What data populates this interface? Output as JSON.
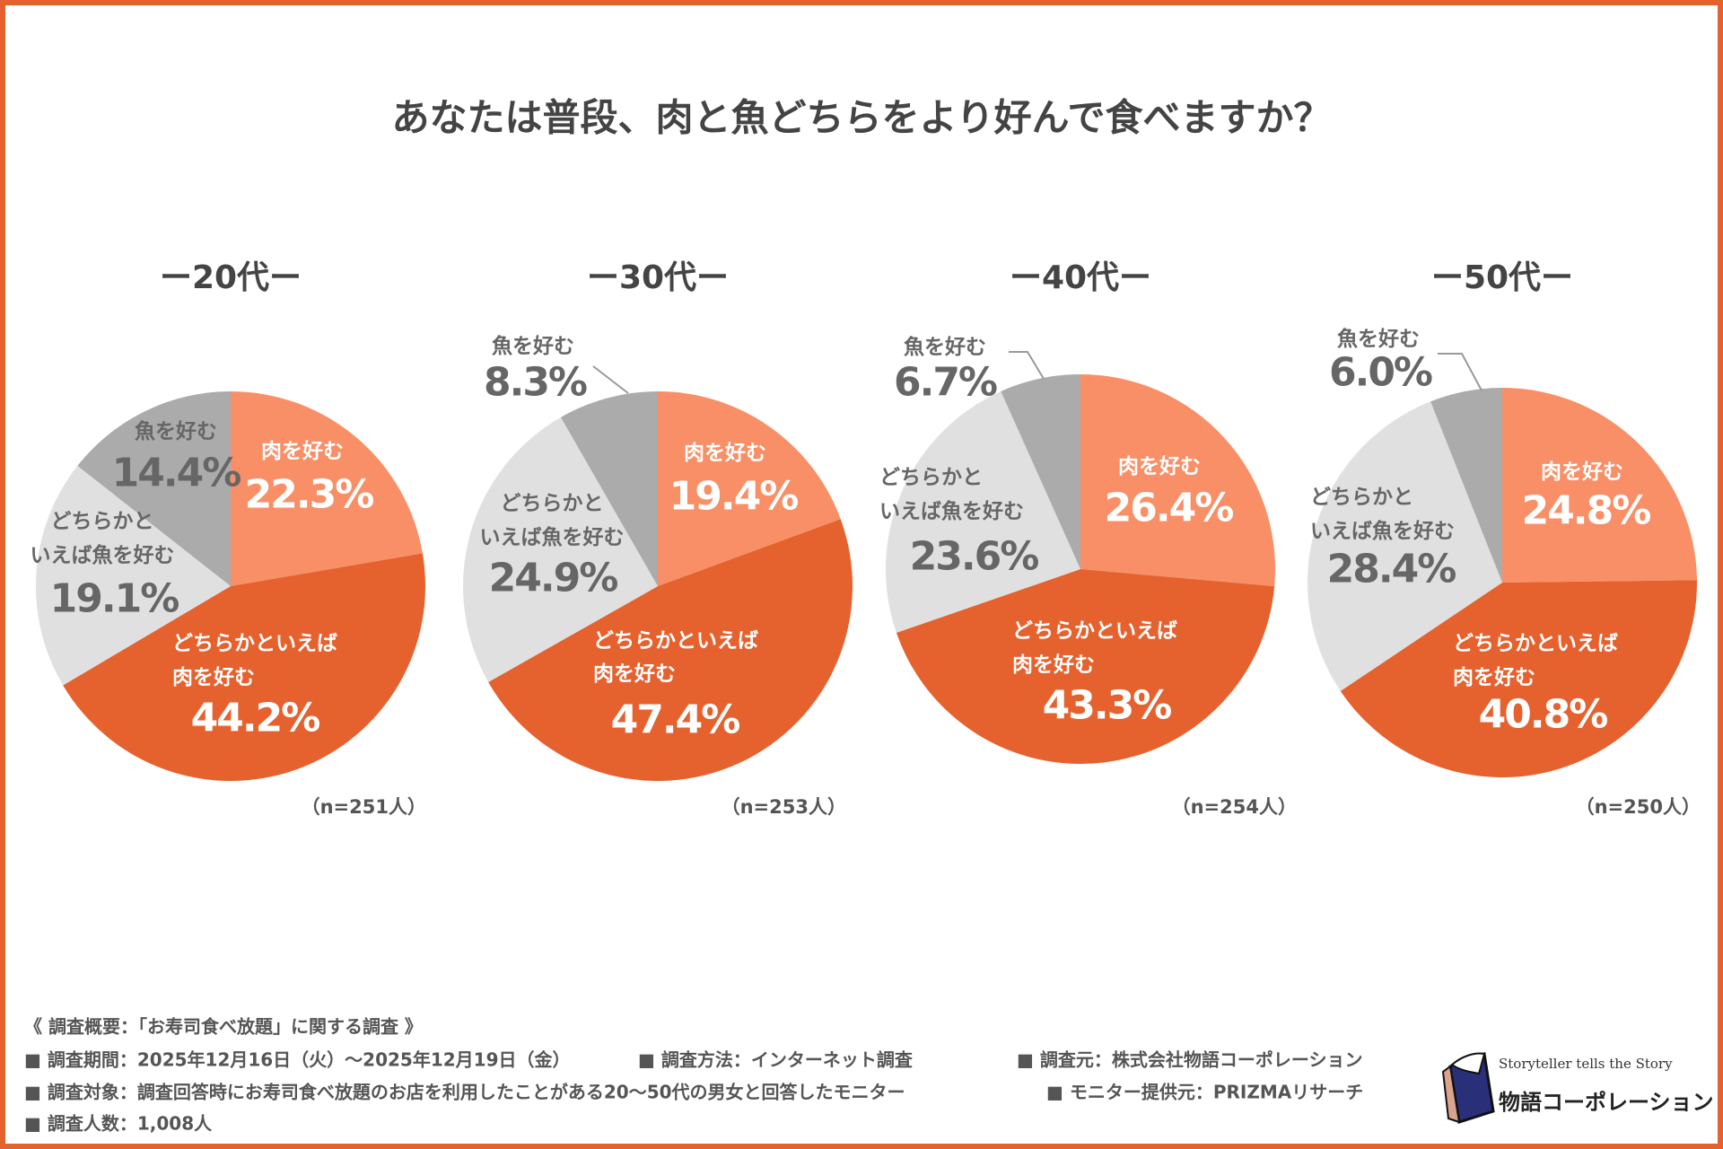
{
  "title": "あなたは普段、肉と魚どちらをより好んで食べますか？",
  "colors": {
    "meat": "#F98F66",
    "leaning_meat": "#E5622F",
    "leaning_fish": "#E0E0E0",
    "fish": "#ABABAB",
    "border": "#E5622F"
  },
  "chart_data": [
    {
      "type": "pie",
      "title": "ー20代ー",
      "n_label": "（n=251人）",
      "categories": [
        "肉を好む",
        "どちらかといえば肉を好む",
        "どちらかといえば魚を好む",
        "魚を好む"
      ],
      "values": [
        22.3,
        44.2,
        19.1,
        14.4
      ],
      "labels": [
        "22.3%",
        "44.2%",
        "19.1%",
        "14.4%"
      ]
    },
    {
      "type": "pie",
      "title": "ー30代ー",
      "n_label": "（n=253人）",
      "categories": [
        "肉を好む",
        "どちらかといえば肉を好む",
        "どちらかといえば魚を好む",
        "魚を好む"
      ],
      "values": [
        19.4,
        47.4,
        24.9,
        8.3
      ],
      "labels": [
        "19.4%",
        "47.4%",
        "24.9%",
        "8.3%"
      ]
    },
    {
      "type": "pie",
      "title": "ー40代ー",
      "n_label": "（n=254人）",
      "categories": [
        "肉を好む",
        "どちらかといえば肉を好む",
        "どちらかといえば魚を好む",
        "魚を好む"
      ],
      "values": [
        26.4,
        43.3,
        23.6,
        6.7
      ],
      "labels": [
        "26.4%",
        "43.3%",
        "23.6%",
        "6.7%"
      ]
    },
    {
      "type": "pie",
      "title": "ー50代ー",
      "n_label": "（n=250人）",
      "categories": [
        "肉を好む",
        "どちらかといえば肉を好む",
        "どちらかといえば魚を好む",
        "魚を好む"
      ],
      "values": [
        24.8,
        40.8,
        28.4,
        6.0
      ],
      "labels": [
        "24.8%",
        "40.8%",
        "28.4%",
        "6.0%"
      ]
    }
  ],
  "slice_labels": {
    "meat": "肉を好む",
    "leaning_meat_1": "どちらかといえば",
    "leaning_meat_2": "肉を好む",
    "leaning_fish_1": "どちらかと",
    "leaning_fish_2": "いえば魚を好む",
    "fish": "魚を好む"
  },
  "footer": {
    "heading": "《 調査概要：「お寿司食べ放題」に関する調査 》",
    "period": "■ 調査期間：2025年12月16日（火）～2025年12月19日（金）",
    "method": "■ 調査方法：インターネット調査",
    "source": "■ 調査元：株式会社物語コーポレーション",
    "target": "■ 調査対象：調査回答時にお寿司食べ放題のお店を利用したことがある20～50代の男女と回答したモニター",
    "monitor": "■ モニター提供元：PRIZMAリサーチ",
    "count": "■ 調査人数：1,008人"
  },
  "logo": {
    "tagline": "Storyteller tells the Story",
    "name": "物語コーポレーション"
  }
}
